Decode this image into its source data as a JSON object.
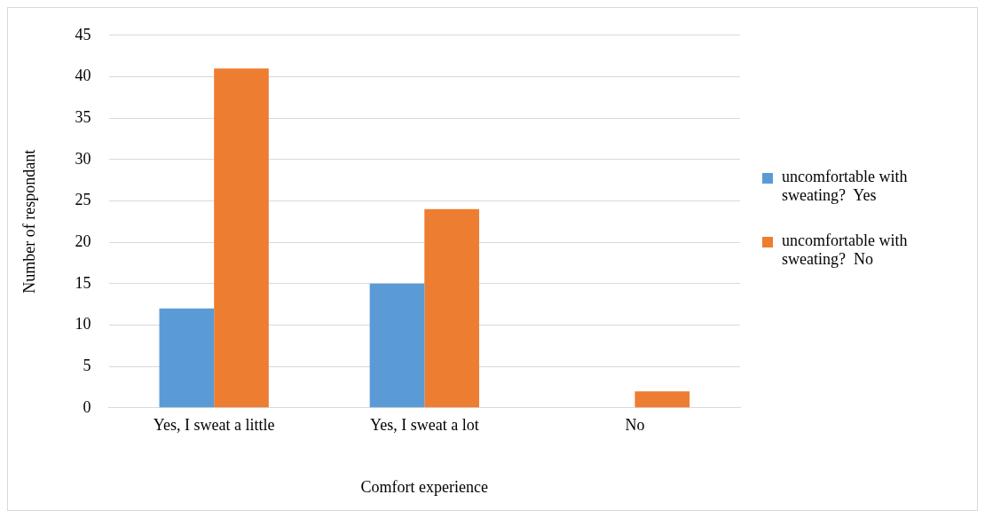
{
  "chart_data": {
    "type": "bar",
    "xlabel": "Comfort experience",
    "ylabel": "Number of respondant",
    "categories": [
      "Yes, I sweat a little",
      "Yes, I sweat a lot",
      "No"
    ],
    "series": [
      {
        "name": "uncomfortable with sweating?  Yes",
        "color": "#5b9bd5",
        "values": [
          12,
          15,
          0
        ]
      },
      {
        "name": "uncomfortable with sweating?  No",
        "color": "#ed7d31",
        "values": [
          41,
          24,
          2
        ]
      }
    ],
    "ylim": [
      0,
      45
    ],
    "yticks": [
      0,
      5,
      10,
      15,
      20,
      25,
      30,
      35,
      40,
      45
    ],
    "grid": "y",
    "legend": "right"
  }
}
